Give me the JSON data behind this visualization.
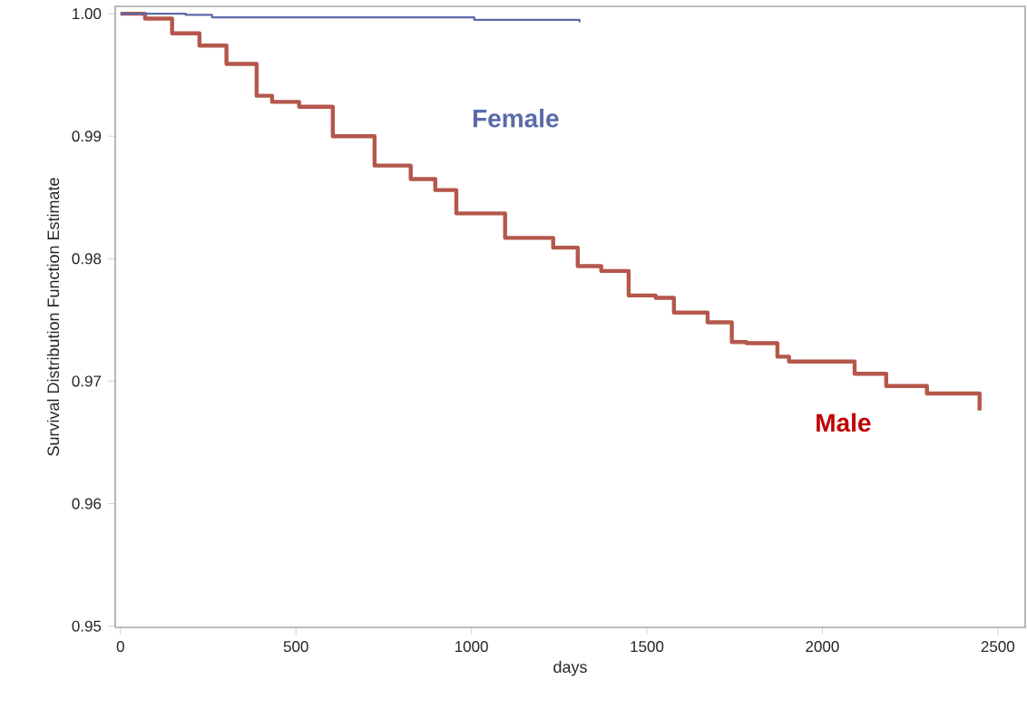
{
  "chart_data": {
    "type": "step",
    "xlabel": "days",
    "ylabel": "Survival Distribution Function Estimate",
    "xlim": [
      -15,
      2578
    ],
    "ylim": [
      0.9499,
      1.0006
    ],
    "xticks": [
      0,
      500,
      1000,
      1500,
      2000,
      2500
    ],
    "yticks": [
      {
        "value": 0.95,
        "label": "0.95"
      },
      {
        "value": 0.96,
        "label": "0.96"
      },
      {
        "value": 0.97,
        "label": "0.97"
      },
      {
        "value": 0.98,
        "label": "0.98"
      },
      {
        "value": 0.99,
        "label": "0.99"
      },
      {
        "value": 1.0,
        "label": "1.00"
      }
    ],
    "grid": false,
    "legend": false,
    "series": [
      {
        "name": "Female",
        "color": "#5a6aa8",
        "x": [
          0,
          186,
          261,
          1008,
          1308,
          1308
        ],
        "values": [
          1.0,
          0.9999,
          0.9997,
          0.9995,
          0.9994,
          0.9993
        ]
      },
      {
        "name": "Male",
        "color": "#b5574b",
        "x": [
          0,
          52,
          70,
          147,
          225,
          302,
          388,
          432,
          509,
          605,
          724,
          827,
          897,
          957,
          1096,
          1156,
          1233,
          1303,
          1370,
          1448,
          1525,
          1577,
          1673,
          1742,
          1784,
          1872,
          1905,
          2061,
          2092,
          2164,
          2182,
          2293,
          2298,
          2448,
          2448
        ],
        "values": [
          1.0,
          1.0,
          0.9996,
          0.9984,
          0.9974,
          0.9959,
          0.9933,
          0.9928,
          0.9924,
          0.99,
          0.9876,
          0.9865,
          0.9856,
          0.9837,
          0.9817,
          0.9817,
          0.9809,
          0.9794,
          0.979,
          0.977,
          0.9768,
          0.9756,
          0.9748,
          0.9732,
          0.9731,
          0.972,
          0.9716,
          0.9716,
          0.9706,
          0.9706,
          0.9696,
          0.9696,
          0.969,
          0.969,
          0.9676
        ]
      }
    ]
  }
}
